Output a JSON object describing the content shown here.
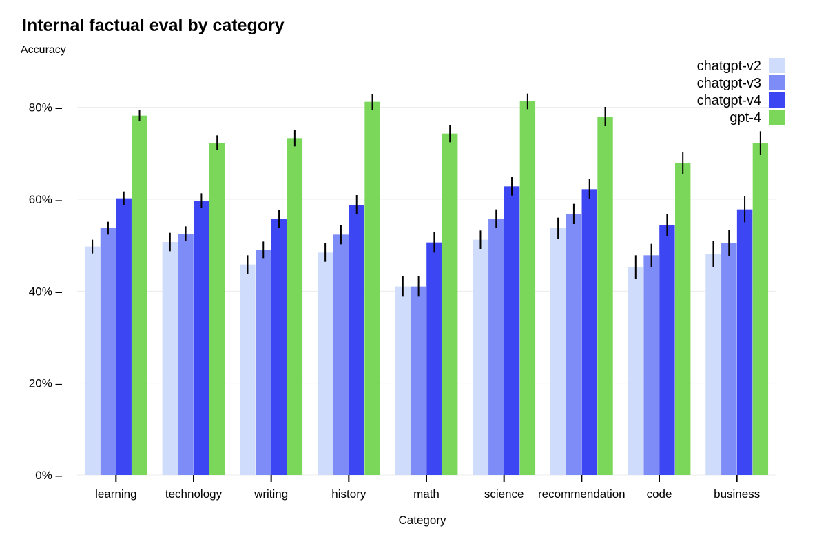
{
  "chart_data": {
    "type": "bar",
    "title": "Internal factual eval by category",
    "ylabel": "Accuracy",
    "xlabel": "Category",
    "ylim": [
      0,
      0.9
    ],
    "yticks": [
      0,
      0.2,
      0.4,
      0.6,
      0.8
    ],
    "ytick_labels": [
      "0% –",
      "20% –",
      "40% –",
      "60% –",
      "80% –"
    ],
    "grid": true,
    "legend_position": "top-right",
    "categories": [
      "learning",
      "technology",
      "writing",
      "history",
      "math",
      "science",
      "recommendation",
      "code",
      "business"
    ],
    "series": [
      {
        "name": "chatgpt-v2",
        "color": "#d0dcfb",
        "values": [
          0.497,
          0.507,
          0.458,
          0.484,
          0.41,
          0.512,
          0.537,
          0.452,
          0.481
        ],
        "errors": [
          0.015,
          0.02,
          0.02,
          0.02,
          0.022,
          0.02,
          0.023,
          0.026,
          0.028
        ]
      },
      {
        "name": "chatgpt-v3",
        "color": "#7d8cf6",
        "values": [
          0.537,
          0.525,
          0.49,
          0.523,
          0.41,
          0.558,
          0.568,
          0.478,
          0.505
        ],
        "errors": [
          0.014,
          0.016,
          0.018,
          0.021,
          0.022,
          0.02,
          0.022,
          0.025,
          0.028
        ]
      },
      {
        "name": "chatgpt-v4",
        "color": "#3c46f2",
        "values": [
          0.602,
          0.597,
          0.557,
          0.588,
          0.506,
          0.628,
          0.622,
          0.543,
          0.578
        ],
        "errors": [
          0.015,
          0.016,
          0.02,
          0.021,
          0.022,
          0.02,
          0.022,
          0.024,
          0.028
        ]
      },
      {
        "name": "gpt-4",
        "color": "#7ad75a",
        "values": [
          0.782,
          0.723,
          0.733,
          0.812,
          0.743,
          0.813,
          0.78,
          0.679,
          0.722
        ],
        "errors": [
          0.012,
          0.016,
          0.018,
          0.017,
          0.019,
          0.017,
          0.021,
          0.024,
          0.026
        ]
      }
    ]
  }
}
